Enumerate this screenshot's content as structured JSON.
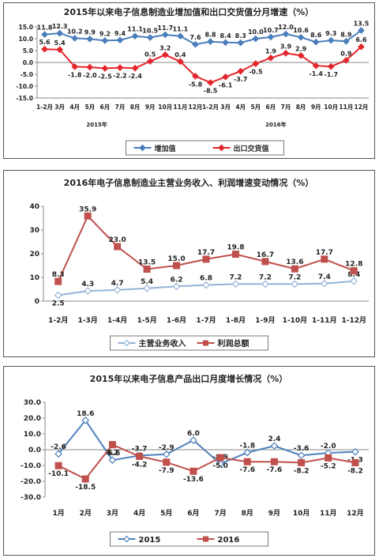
{
  "chart_data": [
    {
      "type": "line",
      "title": "2015年以来电子信息制造业增加值和出口交货值分月增速（%）",
      "categories": [
        "1-2月",
        "3月",
        "4月",
        "5月",
        "6月",
        "7月",
        "8月",
        "9月",
        "10月",
        "11月",
        "12月",
        "1-2月",
        "3月",
        "4月",
        "5月",
        "6月",
        "7月",
        "8月",
        "9月",
        "10月",
        "11月",
        "12月"
      ],
      "year_labels": [
        "2015年",
        "2016年"
      ],
      "yticks": [
        "15.0",
        "10.0",
        "5.0",
        "0.0",
        "-5.0",
        "-10.0",
        "-15.0"
      ],
      "ylim": [
        -15,
        15
      ],
      "series": [
        {
          "name": "增加值",
          "color": "#4a7ebb",
          "values": [
            11.8,
            12.3,
            10.2,
            9.9,
            9.2,
            9.4,
            11.1,
            10.5,
            11.7,
            11.1,
            7.6,
            8.8,
            8.4,
            8.3,
            10.0,
            10.7,
            12.0,
            10.6,
            8.6,
            9.3,
            8.9,
            13.5
          ]
        },
        {
          "name": "出口交货值",
          "color": "#e3262b",
          "values": [
            5.6,
            5.4,
            -1.8,
            -2.0,
            -2.5,
            -2.2,
            -2.4,
            0.5,
            3.2,
            0.4,
            -5.8,
            -8.5,
            -6.1,
            -3.7,
            -0.5,
            1.9,
            3.9,
            2.9,
            -1.4,
            -1.7,
            0.9,
            6.6
          ]
        }
      ],
      "labels": [
        [
          "11.8",
          "12.3",
          "10.2",
          "9.9",
          "9.2",
          "9.4",
          "11.1",
          "10.5",
          "11.7",
          "11.1",
          "7.6",
          "8.8",
          "8.4",
          "8.3",
          "10.0",
          "10.7",
          "12.0",
          "10.6",
          "8.6",
          "9.3",
          "8.9",
          "13.5"
        ],
        [
          "5.6",
          "5.4",
          "-1.8",
          "-2.0",
          "-2.5",
          "-2.2",
          "-2.4",
          "0.5",
          "3.2",
          "0.4",
          "-5.8",
          "-8.5",
          "-6.1",
          "-3.7",
          "-0.5",
          "1.9",
          "3.9",
          "2.9",
          "-1.4",
          "-1.7",
          "0.9",
          "6.6"
        ]
      ],
      "legend": "bottom",
      "grid": false
    },
    {
      "type": "line",
      "title": "2016年电子信息制造业主营业务收入、利润增速变动情况（%）",
      "categories": [
        "1-2月",
        "1-3月",
        "1-4月",
        "1-5月",
        "1-6月",
        "1-7月",
        "1-8月",
        "1-9月",
        "1-10月",
        "1-11月",
        "1-12月"
      ],
      "yticks": [
        "40",
        "30",
        "20",
        "10",
        "0"
      ],
      "ylim": [
        0,
        40
      ],
      "series": [
        {
          "name": "主营业务收入",
          "color": "#95b3d7",
          "values": [
            2.5,
            4.3,
            4.7,
            5.4,
            6.2,
            6.8,
            7.2,
            7.2,
            7.2,
            7.4,
            8.4
          ]
        },
        {
          "name": "利润总额",
          "color": "#c0504d",
          "values": [
            8.3,
            35.9,
            23.0,
            13.5,
            15.0,
            17.7,
            19.8,
            16.7,
            13.6,
            17.7,
            12.8
          ]
        }
      ],
      "labels": [
        [
          "2.5",
          "4.3",
          "4.7",
          "5.4",
          "6.2",
          "6.8",
          "7.2",
          "7.2",
          "7.2",
          "7.4",
          "8.4"
        ],
        [
          "8.3",
          "35.9",
          "23.0",
          "13.5",
          "15.0",
          "17.7",
          "19.8",
          "16.7",
          "13.6",
          "17.7",
          "12.8"
        ]
      ],
      "legend": "bottom",
      "grid": false
    },
    {
      "type": "line",
      "title": "2015年以来电子信息产品出口月度增长情况（%）",
      "categories": [
        "1月",
        "2月",
        "3月",
        "4月",
        "5月",
        "6月",
        "7月",
        "8月",
        "9月",
        "10月",
        "11月",
        "12月"
      ],
      "yticks": [
        "30.0",
        "20.0",
        "10.0",
        "0.0",
        "-10.0",
        "-20.0",
        "-30.0"
      ],
      "ylim": [
        -30,
        30
      ],
      "series": [
        {
          "name": "2015",
          "color": "#4f81bd",
          "values": [
            -2.6,
            18.6,
            -6.6,
            -3.7,
            -2.9,
            6.0,
            -8.9,
            -1.8,
            2.4,
            -3.6,
            -2.0,
            -1.3
          ]
        },
        {
          "name": "2016",
          "color": "#c0504d",
          "values": [
            -10.1,
            -18.5,
            3.2,
            -4.2,
            -7.9,
            -13.6,
            -5.0,
            -7.6,
            -7.6,
            -8.2,
            -5.2,
            -8.2
          ]
        }
      ],
      "labels": [
        [
          "-2.6",
          "18.6",
          "-6.6",
          "-3.7",
          "-2.9",
          "6.0",
          "-8.9",
          "-1.8",
          "2.4",
          "-3.6",
          "-2.0",
          "-1.3"
        ],
        [
          "-10.1",
          "-18.5",
          "3.2",
          "-4.2",
          "-7.9",
          "-13.6",
          "-5.0",
          "-7.6",
          "-7.6",
          "-8.2",
          "-5.2",
          "-8.2"
        ]
      ],
      "legend": "bottom",
      "grid": false
    }
  ]
}
